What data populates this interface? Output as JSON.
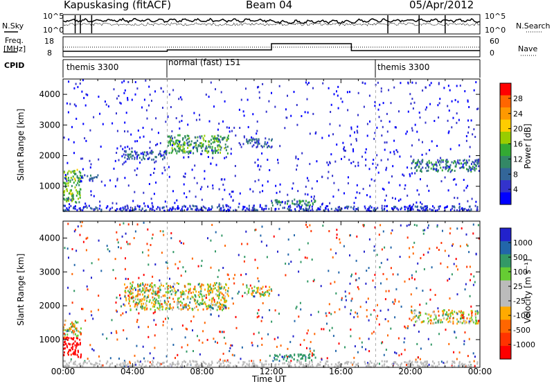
{
  "header": {
    "station": "Kapuskasing (fitACF)",
    "beam": "Beam 04",
    "date": "05/Apr/2012"
  },
  "summary_panels": {
    "nsky_label": "N.Sky",
    "nsearch_label": "N.Search",
    "noise_ticks": [
      "10^5",
      "10^0"
    ],
    "freq_label_line1": "Freq.",
    "freq_label_line2": "[MHz]",
    "freq_ticks": [
      "18",
      "8"
    ],
    "nave_label": "Nave",
    "nave_ticks": [
      "60",
      "0"
    ],
    "cpid_label": "CPID",
    "cpid_segments": [
      {
        "label": "themis 3300",
        "start_hour": 0
      },
      {
        "label": "normal (fast) 151",
        "start_hour": 6.0
      },
      {
        "label": "themis 3300",
        "start_hour": 18.0
      }
    ]
  },
  "power_panel": {
    "ylabel": "Slant Range [km]",
    "colorbar_label": "Power [dB]",
    "colorbar_ticks": [
      "28",
      "24",
      "20",
      "16",
      "12",
      "8",
      "4"
    ],
    "colorbar_colors": [
      "#ff0000",
      "#ff6600",
      "#ff9900",
      "#ffcc00",
      "#99cc00",
      "#33aa33",
      "#338866",
      "#336699",
      "#3333cc",
      "#0000ff"
    ]
  },
  "velocity_panel": {
    "ylabel": "Slant Range [km]",
    "colorbar_label": "Velocity [m s⁻¹]",
    "colorbar_ticks": [
      "1000",
      "500",
      "100",
      "25",
      "-25",
      "-100",
      "-500",
      "-1000"
    ],
    "colorbar_colors": [
      "#2222cc",
      "#2266aa",
      "#339966",
      "#66cc33",
      "#bbbbbb",
      "#bbbbbb",
      "#ffaa00",
      "#ff6600",
      "#ff3300",
      "#ff0000"
    ]
  },
  "xaxis": {
    "label": "Time UT",
    "ticks": [
      "00:00",
      "04:00",
      "08:00",
      "12:00",
      "16:00",
      "20:00",
      "00:00"
    ]
  },
  "chart_data": [
    {
      "type": "heatmap",
      "title": "Power [dB]",
      "xlabel": "Time UT",
      "ylabel": "Slant Range [km]",
      "xlim": [
        0,
        24
      ],
      "ylim": [
        180,
        4500
      ],
      "yticks": [
        1000,
        2000,
        3000,
        4000
      ],
      "clim": [
        0,
        30
      ],
      "features": [
        {
          "start_hour": 0.0,
          "end_hour": 1.0,
          "range_km": [
            500,
            1600
          ],
          "power_db": 14
        },
        {
          "start_hour": 1.0,
          "end_hour": 2.0,
          "range_km": [
            1200,
            1400
          ],
          "power_db": 6
        },
        {
          "start_hour": 3.5,
          "end_hour": 6.0,
          "range_km": [
            1900,
            2200
          ],
          "power_db": 6
        },
        {
          "start_hour": 6.0,
          "end_hour": 9.5,
          "range_km": [
            2100,
            2700
          ],
          "power_db": 12
        },
        {
          "start_hour": 10.5,
          "end_hour": 12.0,
          "range_km": [
            2300,
            2600
          ],
          "power_db": 6
        },
        {
          "start_hour": 12.0,
          "end_hour": 14.5,
          "range_km": [
            400,
            600
          ],
          "power_db": 10
        },
        {
          "start_hour": 20.0,
          "end_hour": 24.0,
          "range_km": [
            1500,
            1900
          ],
          "power_db": 8
        }
      ]
    },
    {
      "type": "heatmap",
      "title": "Velocity [m s⁻¹]",
      "xlabel": "Time UT",
      "ylabel": "Slant Range [km]",
      "xlim": [
        0,
        24
      ],
      "ylim": [
        180,
        4500
      ],
      "yticks": [
        1000,
        2000,
        3000,
        4000
      ],
      "clim": [
        -1000,
        1000
      ],
      "features": [
        {
          "start_hour": 0.0,
          "end_hour": 1.0,
          "range_km": [
            500,
            1100
          ],
          "velocity_ms": -500
        },
        {
          "start_hour": 0.0,
          "end_hour": 1.0,
          "range_km": [
            1100,
            1600
          ],
          "velocity_ms": 0
        },
        {
          "start_hour": 3.5,
          "end_hour": 9.5,
          "range_km": [
            1900,
            2700
          ],
          "velocity_ms": 0
        },
        {
          "start_hour": 10.5,
          "end_hour": 12.0,
          "range_km": [
            2300,
            2600
          ],
          "velocity_ms": 0
        },
        {
          "start_hour": 12.0,
          "end_hour": 14.5,
          "range_km": [
            400,
            600
          ],
          "velocity_ms": 80
        },
        {
          "start_hour": 20.0,
          "end_hour": 24.0,
          "range_km": [
            1500,
            1900
          ],
          "velocity_ms": 0
        }
      ]
    }
  ]
}
